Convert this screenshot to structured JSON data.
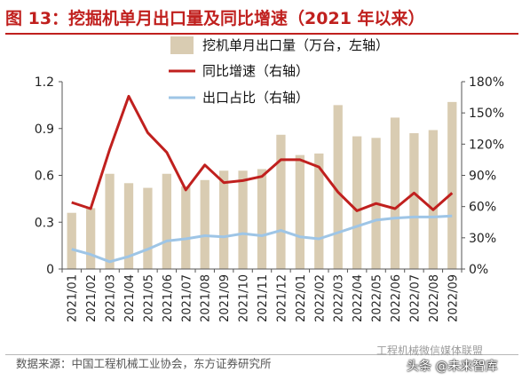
{
  "title": "图 13：挖掘机单月出口量及同比增速（2021 年以来）",
  "source": "数据来源：中国工程机械工业协会，东方证券研究所",
  "watermark": {
    "line1": "工程机械微信媒体联盟",
    "line2": "头条 @未来智库"
  },
  "chart_data": {
    "type": "bar",
    "title": "图 13：挖掘机单月出口量及同比增速（2021 年以来）",
    "categories": [
      "2021/01",
      "2021/02",
      "2021/03",
      "2021/04",
      "2021/05",
      "2021/06",
      "2021/07",
      "2021/08",
      "2021/09",
      "2021/10",
      "2021/11",
      "2021/12",
      "2022/01",
      "2022/02",
      "2022/03",
      "2022/04",
      "2022/05",
      "2022/06",
      "2022/07",
      "2022/08",
      "2022/09"
    ],
    "series": [
      {
        "name": "挖机单月出口量（万台，左轴）",
        "type": "bar",
        "axis": "left",
        "color": "#d9ccb2",
        "values": [
          0.36,
          0.39,
          0.61,
          0.55,
          0.52,
          0.61,
          0.53,
          0.57,
          0.63,
          0.63,
          0.64,
          0.86,
          0.73,
          0.74,
          1.05,
          0.85,
          0.84,
          0.97,
          0.87,
          0.89,
          1.07
        ]
      },
      {
        "name": "同比增速（右轴）",
        "type": "line",
        "axis": "right",
        "color": "#c0201e",
        "values": [
          64,
          58,
          115,
          166,
          131,
          112,
          76,
          100,
          83,
          85,
          89,
          105,
          105,
          98,
          74,
          56,
          63,
          58,
          73,
          57,
          73
        ]
      },
      {
        "name": "出口占比（右轴）",
        "type": "line",
        "axis": "right",
        "color": "#9ec5e6",
        "values": [
          19,
          14,
          7,
          12,
          19,
          27,
          29,
          32,
          31,
          34,
          32,
          37,
          31,
          29,
          35,
          41,
          47,
          49,
          50,
          50,
          51
        ]
      }
    ],
    "left_axis": {
      "min": 0,
      "max": 1.2,
      "ticks": [
        "0",
        "0.3",
        "0.6",
        "0.9",
        "1.2"
      ]
    },
    "right_axis": {
      "min": 0,
      "max": 180,
      "ticks": [
        "0%",
        "30%",
        "60%",
        "90%",
        "120%",
        "150%",
        "180%"
      ]
    },
    "grid": false,
    "legend_position": "top-center"
  }
}
